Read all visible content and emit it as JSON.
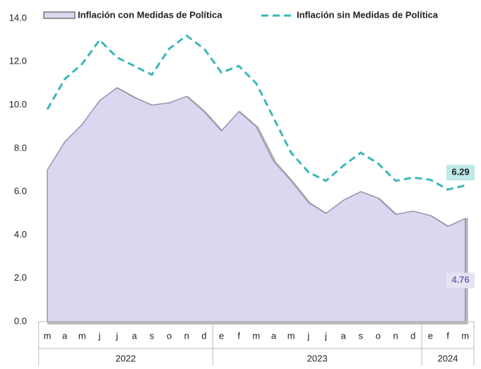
{
  "chart_data": {
    "type": "area-line",
    "categories": [
      "m",
      "a",
      "m",
      "j",
      "j",
      "a",
      "s",
      "o",
      "n",
      "d",
      "e",
      "f",
      "m",
      "a",
      "m",
      "j",
      "j",
      "a",
      "s",
      "o",
      "n",
      "d",
      "e",
      "f",
      "m"
    ],
    "groups": [
      {
        "label": "2022",
        "count": 10
      },
      {
        "label": "2023",
        "count": 12
      },
      {
        "label": "2024",
        "count": 3
      }
    ],
    "series": [
      {
        "name": "Inflación con Medidas de Política",
        "color": "#dcd6f0",
        "style": "area",
        "label_last": true,
        "values": [
          7.0,
          8.3,
          9.1,
          10.2,
          10.8,
          10.35,
          10.0,
          10.1,
          10.4,
          9.7,
          8.8,
          9.7,
          9.0,
          7.4,
          6.5,
          5.5,
          5.0,
          5.6,
          6.0,
          5.7,
          4.95,
          5.1,
          4.9,
          4.4,
          4.76
        ]
      },
      {
        "name": "Inflación sin Medidas de Política",
        "color": "#3bb8b8",
        "style": "dashed",
        "label_last": true,
        "values": [
          9.8,
          11.2,
          11.9,
          13.0,
          12.2,
          11.8,
          11.4,
          12.6,
          13.2,
          12.6,
          11.5,
          11.8,
          11.0,
          9.4,
          7.8,
          6.9,
          6.5,
          7.2,
          7.8,
          7.3,
          6.5,
          6.65,
          6.55,
          6.1,
          6.29
        ]
      }
    ],
    "ylim": [
      0,
      14
    ],
    "yticks": [
      {
        "value": 0,
        "label": "0.0"
      },
      {
        "value": 2,
        "label": "2.0"
      },
      {
        "value": 4,
        "label": "4.0"
      },
      {
        "value": 6,
        "label": "6.0"
      },
      {
        "value": 8,
        "label": "8.0"
      },
      {
        "value": 10,
        "label": "10.0"
      },
      {
        "value": 12,
        "label": "12.0"
      },
      {
        "value": 14,
        "label": "14.0"
      }
    ],
    "grid": false
  }
}
